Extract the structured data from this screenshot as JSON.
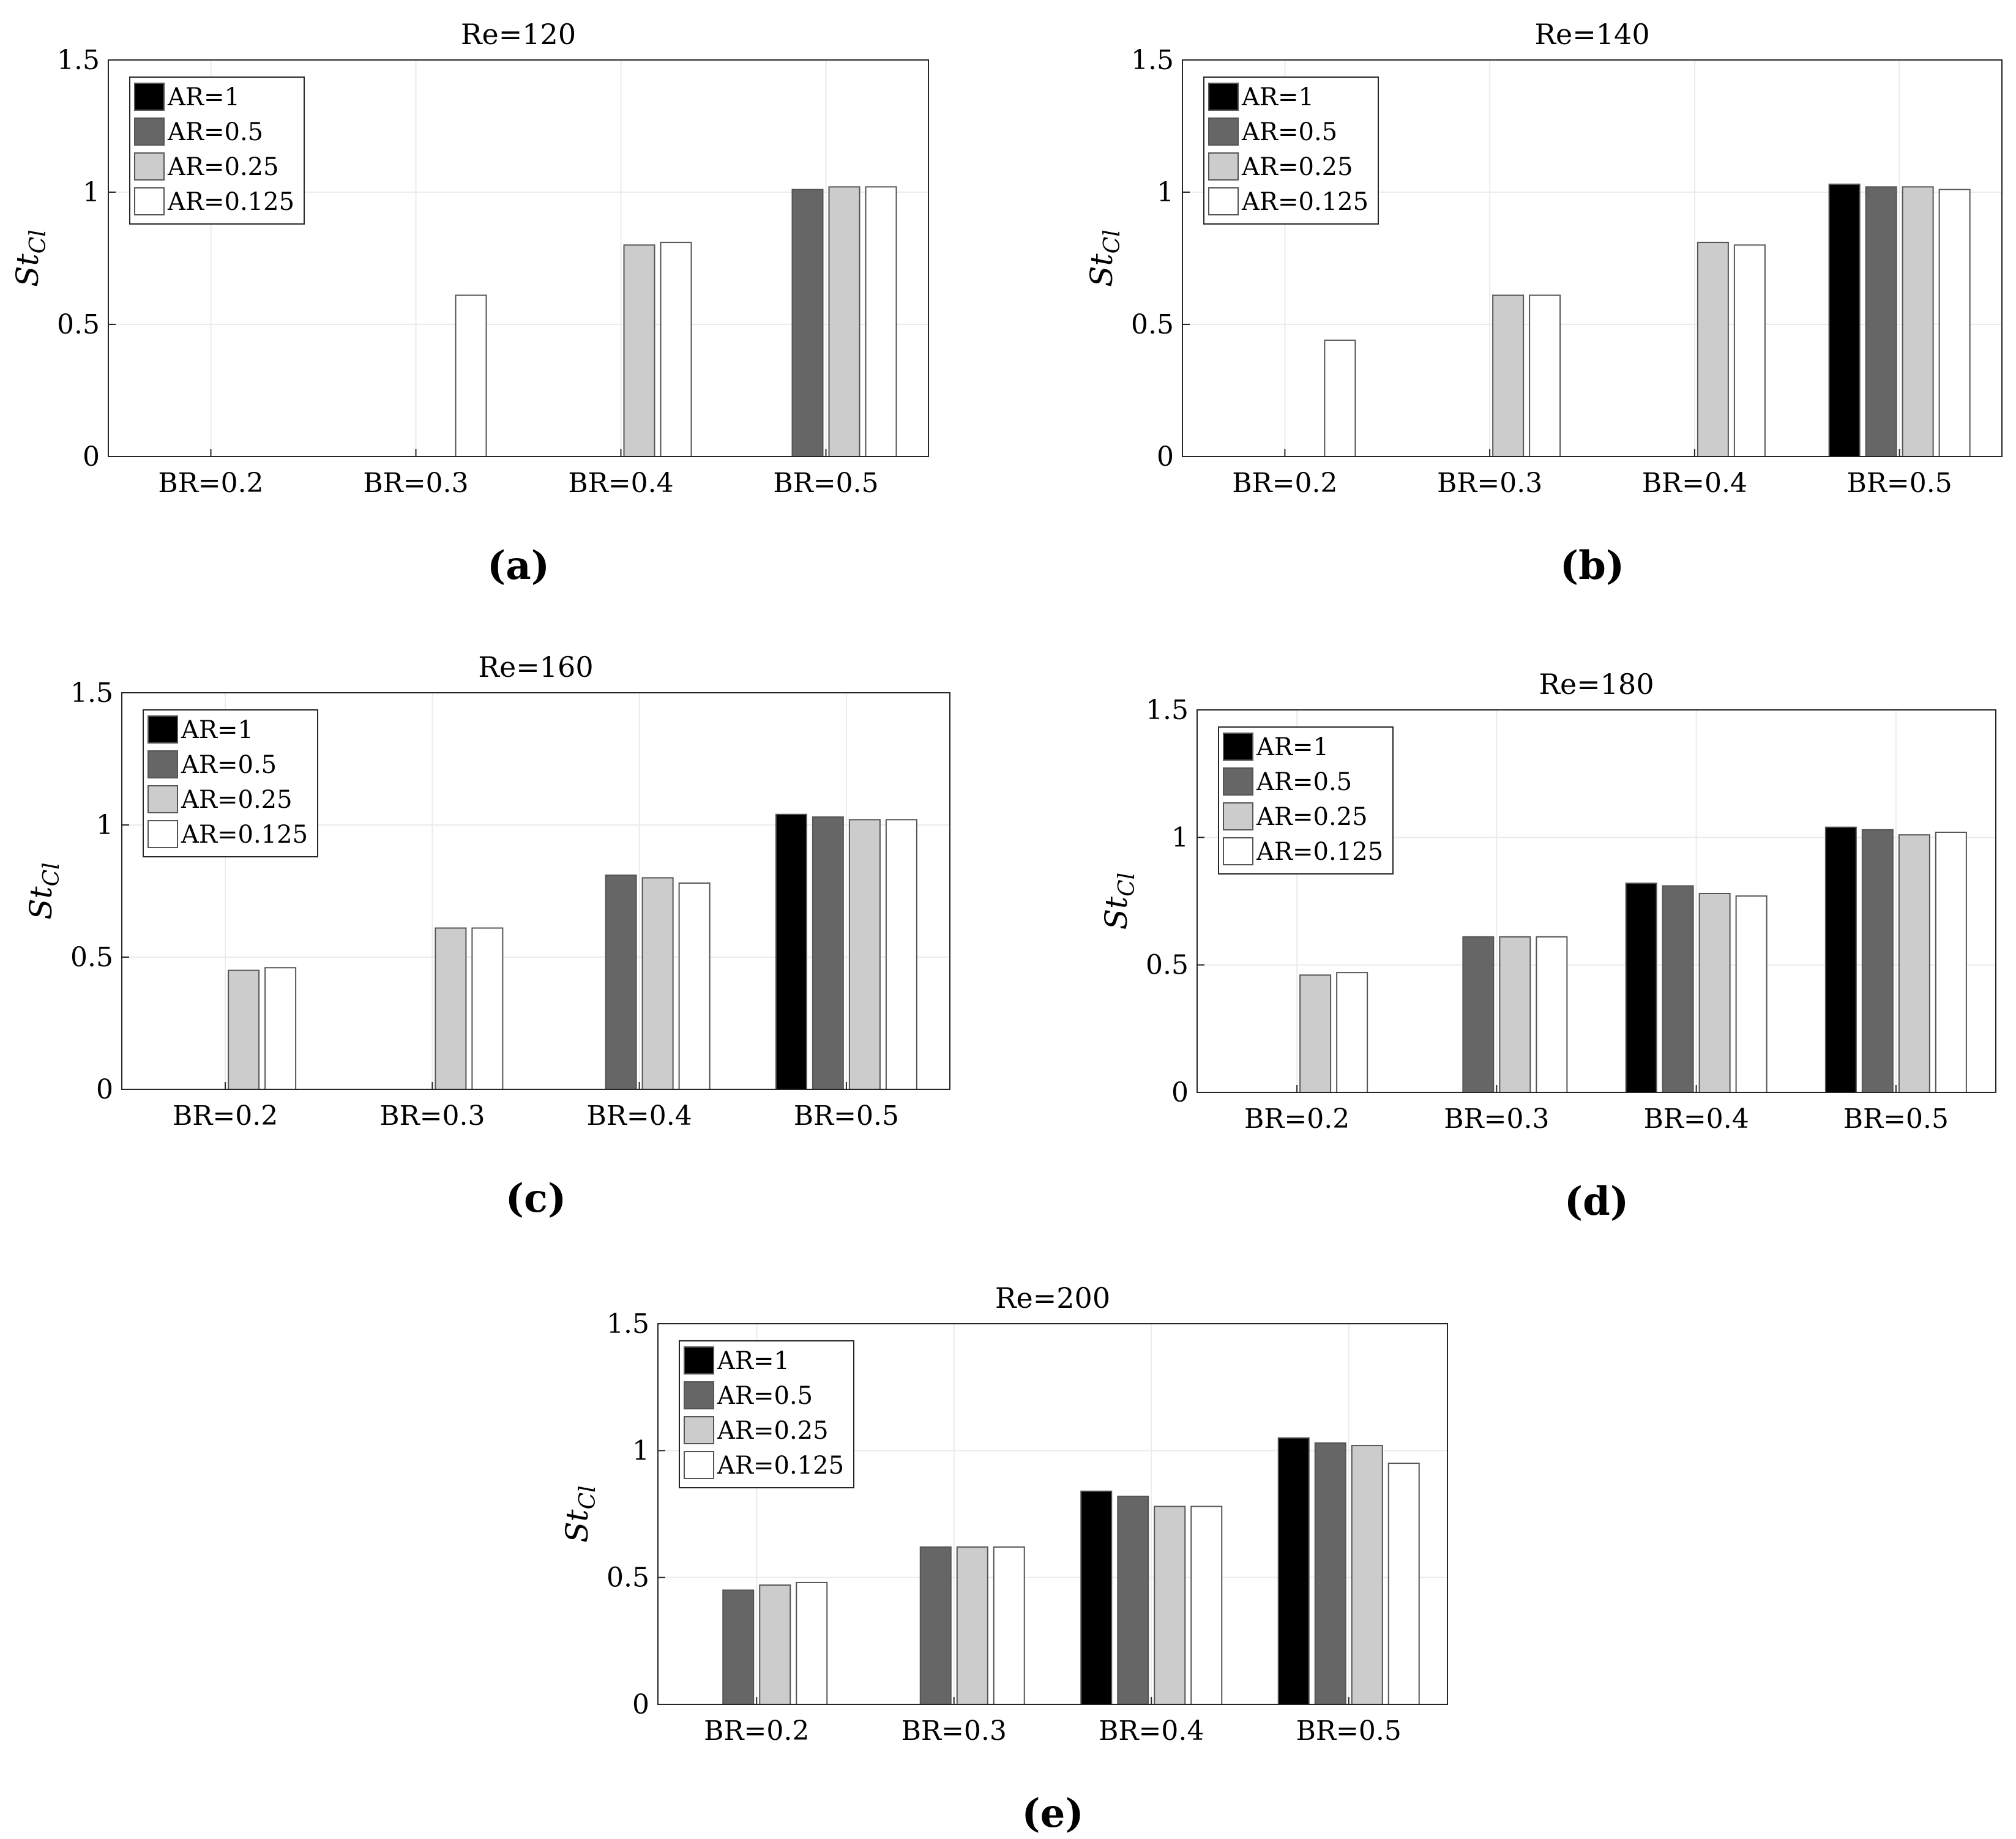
{
  "figure": {
    "series_names": [
      "AR=1",
      "AR=0.5",
      "AR=0.25",
      "AR=0.125"
    ],
    "series_colors": [
      "#000000",
      "#666666",
      "#cccccc",
      "#ffffff"
    ],
    "ylabel_main": "St",
    "ylabel_sub": "Cl",
    "categories": [
      "BR=0.2",
      "BR=0.3",
      "BR=0.4",
      "BR=0.5"
    ],
    "yticks": [
      "0",
      "0.5",
      "1",
      "1.5"
    ]
  },
  "chart_data": [
    {
      "type": "bar",
      "panel": "(a)",
      "title": "Re=120",
      "categories": [
        "BR=0.2",
        "BR=0.3",
        "BR=0.4",
        "BR=0.5"
      ],
      "ylabel": "St_Cl",
      "ylim": [
        0,
        1.5
      ],
      "legend": "top-left",
      "series": [
        {
          "name": "AR=1",
          "values": [
            null,
            null,
            null,
            null
          ]
        },
        {
          "name": "AR=0.5",
          "values": [
            null,
            null,
            null,
            1.01
          ]
        },
        {
          "name": "AR=0.25",
          "values": [
            null,
            null,
            0.8,
            1.02
          ]
        },
        {
          "name": "AR=0.125",
          "values": [
            null,
            0.61,
            0.81,
            1.02
          ]
        }
      ]
    },
    {
      "type": "bar",
      "panel": "(b)",
      "title": "Re=140",
      "categories": [
        "BR=0.2",
        "BR=0.3",
        "BR=0.4",
        "BR=0.5"
      ],
      "ylabel": "St_Cl",
      "ylim": [
        0,
        1.5
      ],
      "legend": "top-left",
      "series": [
        {
          "name": "AR=1",
          "values": [
            null,
            null,
            null,
            1.03
          ]
        },
        {
          "name": "AR=0.5",
          "values": [
            null,
            null,
            null,
            1.02
          ]
        },
        {
          "name": "AR=0.25",
          "values": [
            null,
            0.61,
            0.81,
            1.02
          ]
        },
        {
          "name": "AR=0.125",
          "values": [
            0.44,
            0.61,
            0.8,
            1.01
          ]
        }
      ]
    },
    {
      "type": "bar",
      "panel": "(c)",
      "title": "Re=160",
      "categories": [
        "BR=0.2",
        "BR=0.3",
        "BR=0.4",
        "BR=0.5"
      ],
      "ylabel": "St_Cl",
      "ylim": [
        0,
        1.5
      ],
      "legend": "top-left",
      "series": [
        {
          "name": "AR=1",
          "values": [
            null,
            null,
            null,
            1.04
          ]
        },
        {
          "name": "AR=0.5",
          "values": [
            null,
            null,
            0.81,
            1.03
          ]
        },
        {
          "name": "AR=0.25",
          "values": [
            0.45,
            0.61,
            0.8,
            1.02
          ]
        },
        {
          "name": "AR=0.125",
          "values": [
            0.46,
            0.61,
            0.78,
            1.02
          ]
        }
      ]
    },
    {
      "type": "bar",
      "panel": "(d)",
      "title": "Re=180",
      "categories": [
        "BR=0.2",
        "BR=0.3",
        "BR=0.4",
        "BR=0.5"
      ],
      "ylabel": "St_Cl",
      "ylim": [
        0,
        1.5
      ],
      "legend": "top-left",
      "series": [
        {
          "name": "AR=1",
          "values": [
            null,
            null,
            0.82,
            1.04
          ]
        },
        {
          "name": "AR=0.5",
          "values": [
            null,
            0.61,
            0.81,
            1.03
          ]
        },
        {
          "name": "AR=0.25",
          "values": [
            0.46,
            0.61,
            0.78,
            1.01
          ]
        },
        {
          "name": "AR=0.125",
          "values": [
            0.47,
            0.61,
            0.77,
            1.02
          ]
        }
      ]
    },
    {
      "type": "bar",
      "panel": "(e)",
      "title": "Re=200",
      "categories": [
        "BR=0.2",
        "BR=0.3",
        "BR=0.4",
        "BR=0.5"
      ],
      "ylabel": "St_Cl",
      "ylim": [
        0,
        1.5
      ],
      "legend": "top-left",
      "series": [
        {
          "name": "AR=1",
          "values": [
            null,
            null,
            0.84,
            1.05
          ]
        },
        {
          "name": "AR=0.5",
          "values": [
            0.45,
            0.62,
            0.82,
            1.03
          ]
        },
        {
          "name": "AR=0.25",
          "values": [
            0.47,
            0.62,
            0.78,
            1.02
          ]
        },
        {
          "name": "AR=0.125",
          "values": [
            0.48,
            0.62,
            0.78,
            0.95
          ]
        }
      ]
    }
  ]
}
